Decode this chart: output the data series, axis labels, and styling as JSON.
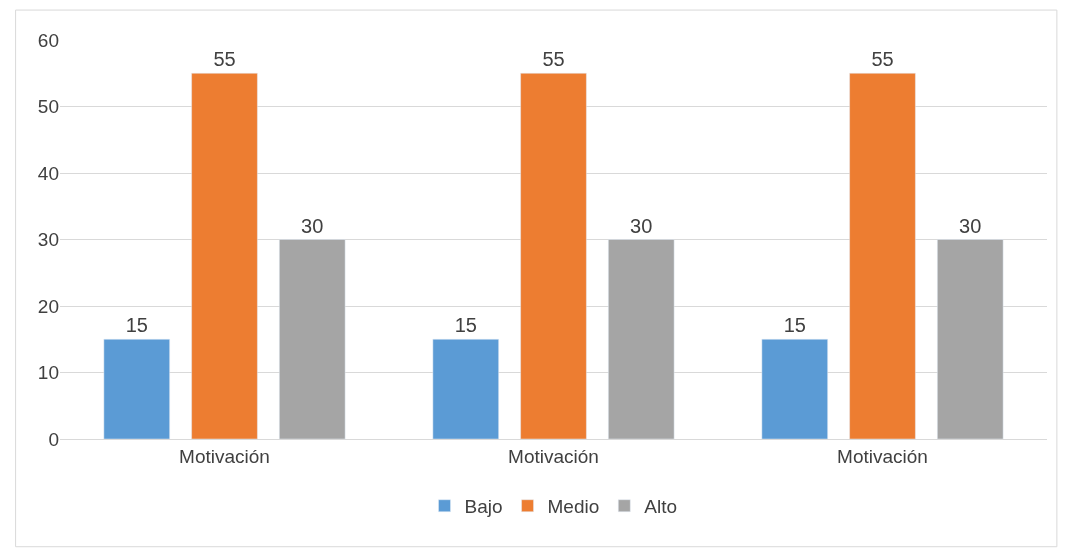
{
  "chart_data": {
    "type": "bar",
    "categories": [
      "Motivación",
      "Motivación",
      "Motivación"
    ],
    "series": [
      {
        "name": "Bajo",
        "color": "#5b9bd5",
        "values": [
          15,
          15,
          15
        ]
      },
      {
        "name": "Medio",
        "color": "#ed7d31",
        "values": [
          55,
          55,
          55
        ]
      },
      {
        "name": "Alto",
        "color": "#a5a5a5",
        "values": [
          30,
          30,
          30
        ]
      }
    ],
    "ylim": [
      0,
      60
    ],
    "yticks": [
      0,
      10,
      20,
      30,
      40,
      50,
      60
    ],
    "grid": "y",
    "legend": "bottom",
    "data_labels": true
  }
}
